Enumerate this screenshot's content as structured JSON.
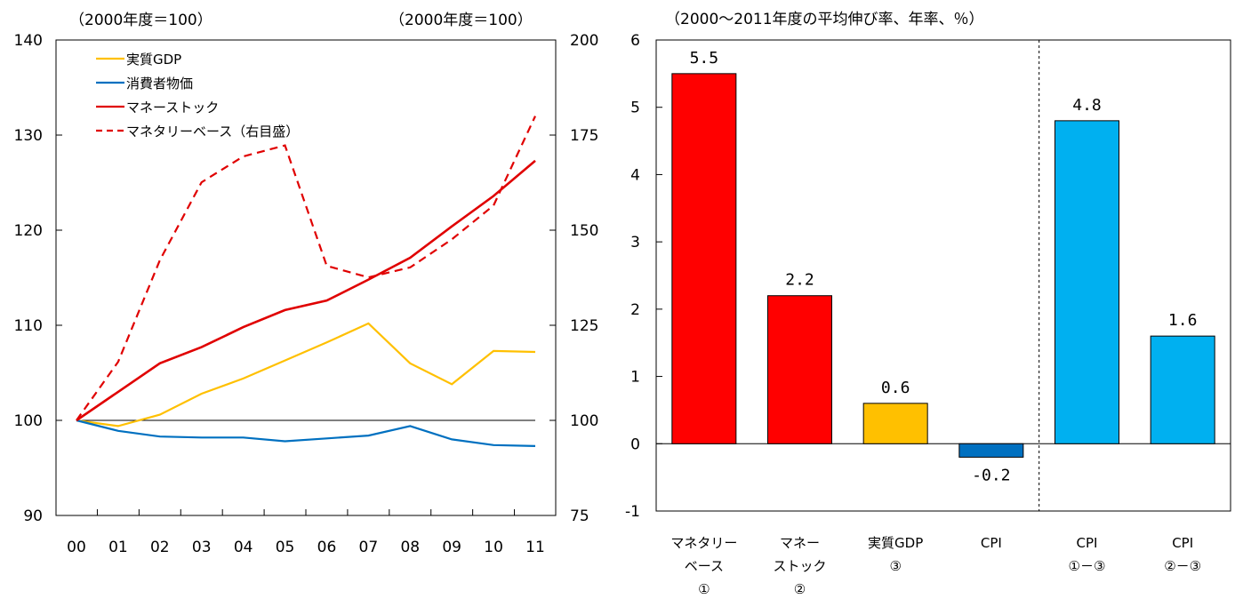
{
  "chart_data": [
    {
      "type": "line",
      "unit_left": "（2000年度＝100）",
      "unit_right": "（2000年度＝100）",
      "categories": [
        "00",
        "01",
        "02",
        "03",
        "04",
        "05",
        "06",
        "07",
        "08",
        "09",
        "10",
        "11"
      ],
      "left_axis": {
        "ylim": [
          90,
          140
        ],
        "ticks": [
          "90",
          "100",
          "110",
          "120",
          "130",
          "140"
        ]
      },
      "right_axis": {
        "ylim": [
          75,
          200
        ],
        "ticks": [
          "75",
          "100",
          "125",
          "150",
          "175",
          "200"
        ]
      },
      "legend": {
        "placement": "top-left"
      },
      "series": [
        {
          "name": "実質GDP",
          "axis": "left",
          "color": "#FFC000",
          "dash": "solid",
          "values": [
            100,
            99.4,
            100.6,
            102.8,
            104.4,
            106.3,
            108.2,
            110.2,
            106.0,
            103.8,
            107.3,
            107.2
          ]
        },
        {
          "name": "消費者物価",
          "axis": "left",
          "color": "#0070C0",
          "dash": "solid",
          "values": [
            100,
            98.9,
            98.3,
            98.2,
            98.2,
            97.8,
            98.1,
            98.4,
            99.4,
            98.0,
            97.4,
            97.3
          ]
        },
        {
          "name": "マネーストック",
          "axis": "left",
          "color": "#E00000",
          "dash": "solid",
          "values": [
            100,
            103.0,
            106.0,
            107.7,
            109.8,
            111.6,
            112.6,
            114.8,
            117.1,
            120.4,
            123.6,
            127.3
          ]
        },
        {
          "name": "マネタリーベース（右目盛）",
          "axis": "right",
          "color": "#E00000",
          "dash": "dashed",
          "values": [
            100,
            115.4,
            142.1,
            162.6,
            169.4,
            172.3,
            140.6,
            137.6,
            140.2,
            147.6,
            156.5,
            180.0
          ]
        }
      ]
    },
    {
      "type": "bar",
      "title": "（2000～2011年度の平均伸び率、年率、％）",
      "ylim": [
        -1,
        6
      ],
      "ticks": [
        "-1",
        "0",
        "1",
        "2",
        "3",
        "4",
        "5",
        "6"
      ],
      "categories": [
        [
          "マネタリー",
          "ベース",
          "①"
        ],
        [
          "マネー",
          "ストック",
          "②"
        ],
        [
          "実質GDP",
          "③"
        ],
        [
          "CPI"
        ],
        [
          "CPI",
          "①－③"
        ],
        [
          "CPI",
          "②－③"
        ]
      ],
      "values": [
        5.5,
        2.2,
        0.6,
        -0.2,
        4.8,
        1.6
      ],
      "value_labels": [
        "5.5",
        "2.2",
        "0.6",
        "-0.2",
        "4.8",
        "1.6"
      ],
      "colors": [
        "#FF0000",
        "#FF0000",
        "#FFC000",
        "#0070C0",
        "#00B0F0",
        "#00B0F0"
      ],
      "label_colors": [
        "#000000",
        "#000000",
        "#000000",
        "#FF0000",
        "#000000",
        "#000000"
      ],
      "separator_after_index": 3
    }
  ]
}
